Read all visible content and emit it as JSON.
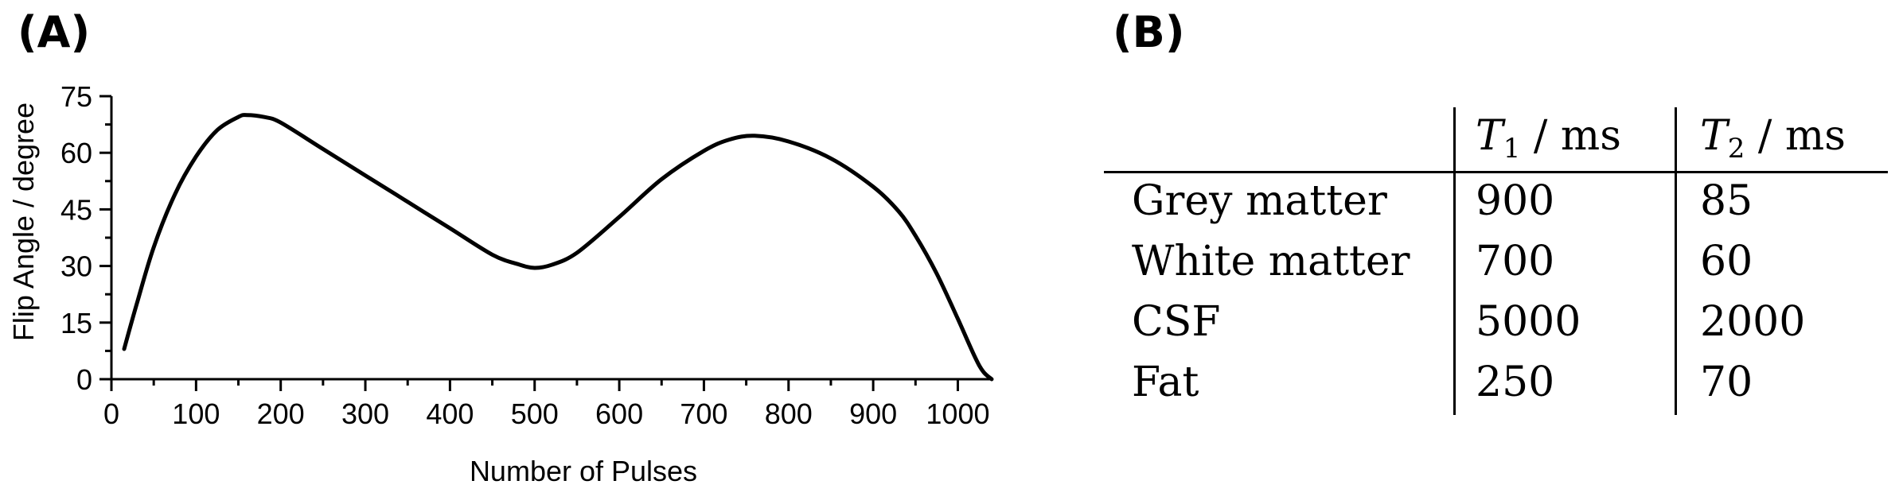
{
  "panels": {
    "a_label": "(A)",
    "b_label": "(B)"
  },
  "chart_data": {
    "type": "line",
    "title": "",
    "xlabel": "Number of Pulses",
    "ylabel": "Flip Angle / degree",
    "xlim": [
      0,
      1040
    ],
    "ylim": [
      0,
      75
    ],
    "xticks": [
      0,
      100,
      200,
      300,
      400,
      500,
      600,
      700,
      800,
      900,
      1000
    ],
    "yticks": [
      0,
      15,
      30,
      45,
      60,
      75
    ],
    "grid": false,
    "series": [
      {
        "name": "Flip Angle",
        "x": [
          15,
          30,
          50,
          75,
          100,
          125,
          150,
          160,
          180,
          200,
          250,
          300,
          350,
          400,
          450,
          480,
          500,
          520,
          550,
          600,
          650,
          700,
          730,
          760,
          800,
          850,
          900,
          930,
          950,
          975,
          1000,
          1020,
          1030,
          1040
        ],
        "y": [
          8,
          20,
          35,
          49,
          59,
          66,
          69.5,
          70,
          69.5,
          68,
          61,
          54,
          47,
          40,
          33,
          30.5,
          29.5,
          30.3,
          33.5,
          43,
          53,
          60.5,
          63.5,
          64.5,
          63,
          58.5,
          51,
          44.5,
          38,
          28,
          16,
          6,
          2,
          0
        ]
      }
    ]
  },
  "table": {
    "headers": [
      "",
      "T1 / ms",
      "T2 / ms"
    ],
    "header_vars": [
      {
        "var": "T",
        "sub": "1",
        "unit": "/ ms"
      },
      {
        "var": "T",
        "sub": "2",
        "unit": "/ ms"
      }
    ],
    "rows": [
      [
        "Grey matter",
        "900",
        "85"
      ],
      [
        "White matter",
        "700",
        "60"
      ],
      [
        "CSF",
        "5000",
        "2000"
      ],
      [
        "Fat",
        "250",
        "70"
      ]
    ]
  }
}
